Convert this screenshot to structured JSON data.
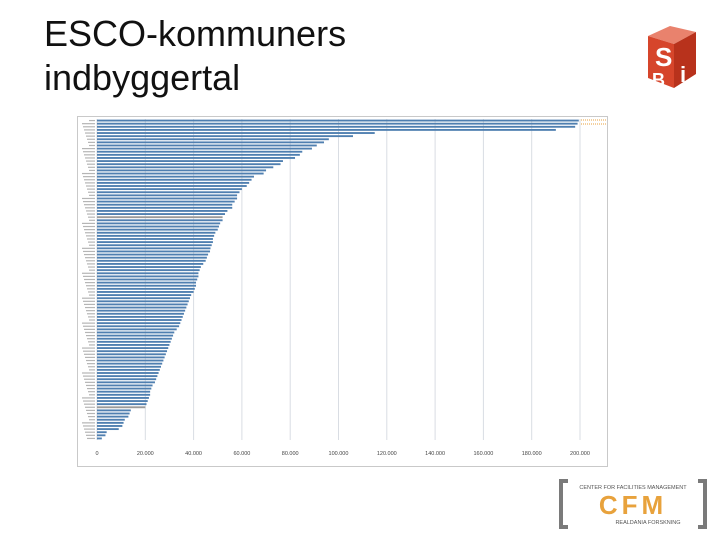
{
  "slide": {
    "title_line1": "ESCO-kommuners",
    "title_line2": "indbyggertal"
  },
  "logos": {
    "sbi": {
      "letters": [
        "S",
        "B",
        "i"
      ],
      "color": "#d6452b"
    },
    "cfm": {
      "top_text": "CENTER FOR FACILITIES MANAGEMENT",
      "main_text": "CFM",
      "bottom_text": "REALDANIA FORSKNING",
      "bracket_color": "#7a7a7a",
      "main_color": "#e8a23c"
    }
  },
  "chart_data": {
    "type": "bar",
    "orientation": "horizontal",
    "xlim": [
      0,
      200000
    ],
    "xticks": [
      0,
      20000,
      40000,
      60000,
      80000,
      100000,
      120000,
      140000,
      160000,
      180000,
      200000
    ],
    "xtick_labels": [
      "0",
      "20.000",
      "40.000",
      "60.000",
      "80.000",
      "100.000",
      "120.000",
      "140.000",
      "160.000",
      "180.000",
      "200.000"
    ],
    "grid": true,
    "bar_color": "#4f7fb0",
    "highlight_color": "#9a9a9a",
    "title": "",
    "xlabel": "",
    "ylabel": "",
    "values": [
      199500,
      199000,
      198000,
      190000,
      115000,
      106000,
      96000,
      94000,
      91000,
      89000,
      85000,
      84000,
      82000,
      77000,
      76000,
      73000,
      70000,
      69000,
      65000,
      64000,
      63000,
      62000,
      60000,
      59000,
      58000,
      58000,
      57000,
      56000,
      56000,
      54000,
      53000,
      52000,
      52000,
      51000,
      50500,
      50000,
      49000,
      48500,
      48000,
      48000,
      47500,
      47000,
      46800,
      46000,
      45500,
      45000,
      44000,
      43000,
      42500,
      42000,
      42000,
      41500,
      41000,
      41000,
      40500,
      40000,
      39000,
      38500,
      38000,
      37500,
      37000,
      36500,
      36000,
      35500,
      35000,
      34500,
      34000,
      33000,
      32000,
      31500,
      31000,
      30500,
      30000,
      29500,
      29000,
      28500,
      28000,
      27500,
      27000,
      26500,
      26000,
      25500,
      25000,
      24500,
      24000,
      23000,
      22500,
      22000,
      22000,
      21500,
      21000,
      20500,
      20000,
      14000,
      13500,
      13000,
      11500,
      11000,
      10500,
      9000,
      4000,
      3500,
      2000
    ],
    "highlighted_indices": [
      31,
      92
    ],
    "category_count": 103
  }
}
